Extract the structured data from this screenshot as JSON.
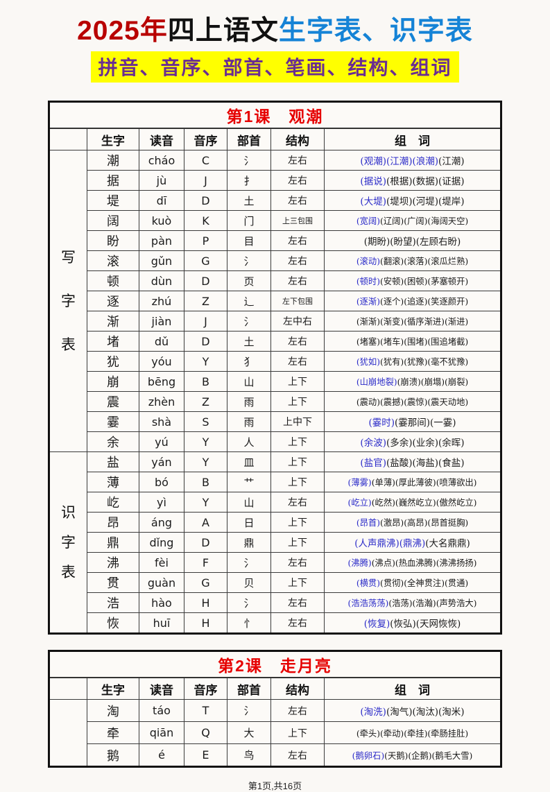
{
  "colors": {
    "title_red": "#b80000",
    "title_blue": "#1583d6",
    "subtitle_purple": "#6a2d91",
    "subtitle_highlight": "#ffff00",
    "lesson_title_red": "#e60000",
    "character_red": "#c0392b",
    "word_highlight_blue": "#2b2bc8"
  },
  "header": {
    "title_part1": "2025年",
    "title_part2": "四上语文",
    "title_part3": "生字表、识字表",
    "subtitle": "拼音、音序、部首、笔画、结构、组词"
  },
  "table_columns": [
    "生字",
    "读音",
    "音序",
    "部首",
    "结构",
    "组　词"
  ],
  "tables": [
    {
      "lesson_title": "第1课　观潮",
      "sections": [
        {
          "label": "写字表",
          "rows": [
            {
              "char": "潮",
              "pinyin": "cháo",
              "initial": "C",
              "radical": "氵",
              "structure": "左右",
              "words_blue": "(观潮)(江潮)(浪潮)",
              "words_black": "(江潮)"
            },
            {
              "char": "据",
              "pinyin": "jù",
              "initial": "J",
              "radical": "扌",
              "structure": "左右",
              "words_blue": "(据说)",
              "words_black": "(根据)(数据)(证据)"
            },
            {
              "char": "堤",
              "pinyin": "dī",
              "initial": "D",
              "radical": "土",
              "structure": "左右",
              "words_blue": "(大堤)",
              "words_black": "(堤坝)(河堤)(堤岸)"
            },
            {
              "char": "阔",
              "pinyin": "kuò",
              "initial": "K",
              "radical": "门",
              "structure": "上三包围",
              "words_blue": "(宽阔)",
              "words_black": "(辽阔)(广阔)(海阔天空)"
            },
            {
              "char": "盼",
              "pinyin": "pàn",
              "initial": "P",
              "radical": "目",
              "structure": "左右",
              "words_blue": "",
              "words_black": "(期盼)(盼望)(左顾右盼)"
            },
            {
              "char": "滚",
              "pinyin": "gǔn",
              "initial": "G",
              "radical": "氵",
              "structure": "左右",
              "words_blue": "(滚动)",
              "words_black": "(翻滚)(滚落)(滚瓜烂熟)"
            },
            {
              "char": "顿",
              "pinyin": "dùn",
              "initial": "D",
              "radical": "页",
              "structure": "左右",
              "words_blue": "(顿时)",
              "words_black": "(安顿)(困顿)(茅塞顿开)"
            },
            {
              "char": "逐",
              "pinyin": "zhú",
              "initial": "Z",
              "radical": "辶",
              "structure": "左下包围",
              "words_blue": "(逐渐)",
              "words_black": "(逐个)(追逐)(笑逐颜开)"
            },
            {
              "char": "渐",
              "pinyin": "jiàn",
              "initial": "J",
              "radical": "氵",
              "structure": "左中右",
              "words_blue": "",
              "words_black": "(渐渐)(渐变)(循序渐进)(渐进)"
            },
            {
              "char": "堵",
              "pinyin": "dǔ",
              "initial": "D",
              "radical": "土",
              "structure": "左右",
              "words_blue": "",
              "words_black": "(堵塞)(堵车)(围堵)(围追堵截)"
            },
            {
              "char": "犹",
              "pinyin": "yóu",
              "initial": "Y",
              "radical": "犭",
              "structure": "左右",
              "words_blue": "(犹如)",
              "words_black": "(犹有)(犹豫)(毫不犹豫)"
            },
            {
              "char": "崩",
              "pinyin": "bēng",
              "initial": "B",
              "radical": "山",
              "structure": "上下",
              "words_blue": "(山崩地裂)",
              "words_black": "(崩溃)(崩塌)(崩裂)"
            },
            {
              "char": "震",
              "pinyin": "zhèn",
              "initial": "Z",
              "radical": "雨",
              "structure": "上下",
              "words_blue": "",
              "words_black": "(震动)(震撼)(震惊)(震天动地)"
            },
            {
              "char": "霎",
              "pinyin": "shà",
              "initial": "S",
              "radical": "雨",
              "structure": "上中下",
              "words_blue": "(霎时)",
              "words_black": "(霎那间)(一霎)"
            },
            {
              "char": "余",
              "pinyin": "yú",
              "initial": "Y",
              "radical": "人",
              "structure": "上下",
              "words_blue": "(余波)",
              "words_black": "(多余)(业余)(余晖)"
            }
          ]
        },
        {
          "label": "识字表",
          "rows": [
            {
              "char": "盐",
              "pinyin": "yán",
              "initial": "Y",
              "radical": "皿",
              "structure": "上下",
              "words_blue": "(盐官)",
              "words_black": "(盐酸)(海盐)(食盐)"
            },
            {
              "char": "薄",
              "pinyin": "bó",
              "initial": "B",
              "radical": "艹",
              "structure": "上下",
              "words_blue": "(薄雾)",
              "words_black": "(单薄)(厚此薄彼)(喷薄欲出)"
            },
            {
              "char": "屹",
              "pinyin": "yì",
              "initial": "Y",
              "radical": "山",
              "structure": "左右",
              "words_blue": "(屹立)",
              "words_black": "(屹然)(巍然屹立)(傲然屹立)"
            },
            {
              "char": "昂",
              "pinyin": "áng",
              "initial": "A",
              "radical": "日",
              "structure": "上下",
              "words_blue": "(昂首)",
              "words_black": "(激昂)(高昂)(昂首挺胸)"
            },
            {
              "char": "鼎",
              "pinyin": "dǐng",
              "initial": "D",
              "radical": "鼎",
              "structure": "上下",
              "words_blue": "(人声鼎沸)(鼎沸)",
              "words_black": "(大名鼎鼎)"
            },
            {
              "char": "沸",
              "pinyin": "fèi",
              "initial": "F",
              "radical": "氵",
              "structure": "左右",
              "words_blue": "(沸腾)",
              "words_black": "(沸点)(热血沸腾)(沸沸扬扬)"
            },
            {
              "char": "贯",
              "pinyin": "guàn",
              "initial": "G",
              "radical": "贝",
              "structure": "上下",
              "words_blue": "(横贯)",
              "words_black": "(贯彻)(全神贯注)(贯通)"
            },
            {
              "char": "浩",
              "pinyin": "hào",
              "initial": "H",
              "radical": "氵",
              "structure": "左右",
              "words_blue": "(浩浩荡荡)",
              "words_black": "(浩荡)(浩瀚)(声势浩大)"
            },
            {
              "char": "恢",
              "pinyin": "huī",
              "initial": "H",
              "radical": "忄",
              "structure": "左右",
              "words_blue": "(恢复)",
              "words_black": "(恢弘)(天网恢恢)"
            }
          ]
        }
      ]
    },
    {
      "lesson_title": "第2课　走月亮",
      "sections": [
        {
          "label": "",
          "rows": [
            {
              "char": "淘",
              "pinyin": "táo",
              "initial": "T",
              "radical": "氵",
              "structure": "左右",
              "words_blue": "(淘洗)",
              "words_black": "(淘气)(淘汰)(淘米)"
            },
            {
              "char": "牵",
              "pinyin": "qiān",
              "initial": "Q",
              "radical": "大",
              "structure": "上下",
              "words_blue": "",
              "words_black": "(牵头)(牵动)(牵挂)(牵肠挂肚)"
            },
            {
              "char": "鹅",
              "pinyin": "é",
              "initial": "E",
              "radical": "鸟",
              "structure": "左右",
              "words_blue": "(鹅卵石)",
              "words_black": "(天鹅)(企鹅)(鹅毛大雪)"
            }
          ]
        }
      ]
    }
  ],
  "footer": {
    "page_info": "第1页,共16页"
  }
}
